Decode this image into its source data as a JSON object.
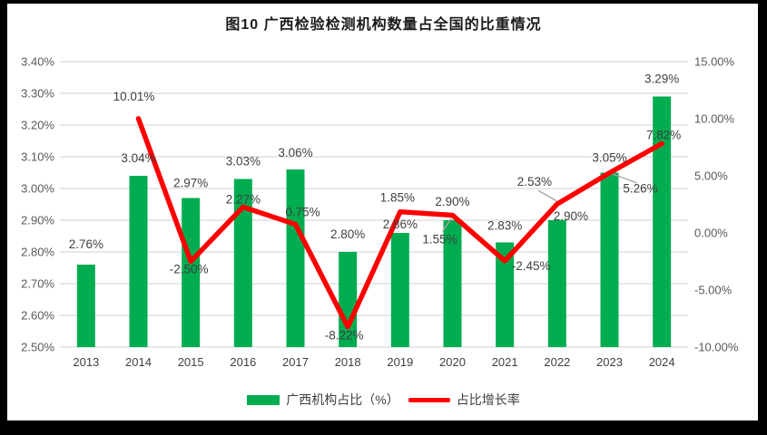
{
  "chart_data": {
    "type": "bar+line",
    "title": "图10 广西检验检测机构数量占全国的比重情况",
    "categories": [
      "2013",
      "2014",
      "2015",
      "2016",
      "2017",
      "2018",
      "2019",
      "2020",
      "2021",
      "2022",
      "2023",
      "2024"
    ],
    "series": [
      {
        "name": "广西机构占比（%）",
        "type": "bar",
        "axis": "left",
        "color": "#00AC50",
        "values": [
          2.76,
          3.04,
          2.97,
          3.03,
          3.06,
          2.8,
          2.86,
          2.9,
          2.83,
          2.9,
          3.05,
          3.29
        ],
        "labels": [
          "2.76%",
          "3.04%",
          "2.97%",
          "3.03%",
          "3.06%",
          "2.80%",
          "2.86%",
          "2.90%",
          "2.83%",
          "2.90%",
          "3.05%",
          "3.29%"
        ]
      },
      {
        "name": "占比增长率",
        "type": "line",
        "axis": "right",
        "color": "#FF0000",
        "values": [
          null,
          10.01,
          -2.5,
          2.27,
          0.75,
          -8.22,
          1.85,
          1.55,
          -2.45,
          2.53,
          5.26,
          7.82
        ],
        "labels": [
          null,
          "10.01%",
          "-2.50%",
          "2.27%",
          "0.75%",
          "-8.22%",
          "1.85%",
          "1.55%",
          "-2.45%",
          "2.53%",
          "5.26%",
          "7.82%"
        ]
      }
    ],
    "left_axis": {
      "min": 2.5,
      "max": 3.4,
      "step": 0.1,
      "tick_labels": [
        "2.50%",
        "2.60%",
        "2.70%",
        "2.80%",
        "2.90%",
        "3.00%",
        "3.10%",
        "3.20%",
        "3.30%",
        "3.40%"
      ]
    },
    "right_axis": {
      "min": -10,
      "max": 15,
      "step": 5,
      "tick_labels": [
        "-10.00%",
        "-5.00%",
        "0.00%",
        "5.00%",
        "10.00%",
        "15.00%"
      ]
    },
    "grid": true,
    "legend_position": "bottom",
    "colors": {
      "grid": "#D9D9D9",
      "axis_text": "#595959",
      "data_label": "#404040",
      "leader": "#A6A6A6"
    },
    "label_layout": {
      "bar_dx": [
        0,
        0,
        0,
        0,
        0,
        0,
        0,
        0,
        0,
        15,
        0,
        0
      ],
      "bar_dy": [
        -18,
        -15,
        -12,
        -15,
        -14,
        -15,
        -5,
        -16,
        -14,
        0,
        -12,
        -15
      ],
      "line_dx": [
        null,
        -5,
        -2,
        0,
        8,
        -4,
        -3,
        -14,
        29,
        -25,
        34,
        2
      ],
      "line_dy": [
        null,
        -20,
        13,
        -4,
        -9,
        14,
        -11,
        31,
        10,
        -20,
        22,
        -5
      ],
      "leaders": {
        "7": [
          [
            -1,
            3
          ],
          [
            -11,
            18
          ]
        ],
        "9": [
          [
            -21,
            -15
          ],
          [
            0,
            -3
          ]
        ],
        "10": [
          [
            0,
            0
          ],
          [
            30,
            11
          ]
        ]
      }
    }
  }
}
